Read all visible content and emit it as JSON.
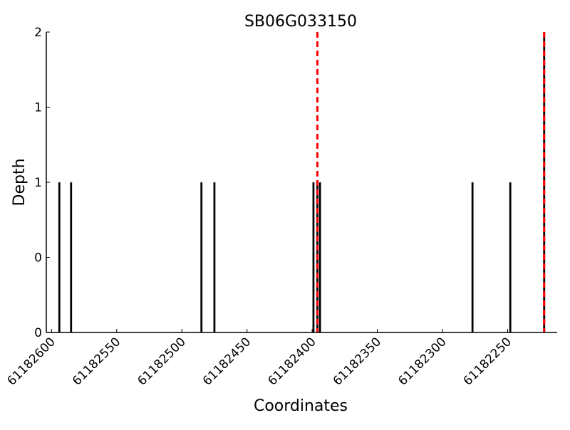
{
  "chart_data": {
    "type": "bar",
    "title": "SB06G033150",
    "xlabel": "Coordinates",
    "ylabel": "Depth",
    "xlim": [
      61182604,
      61182212
    ],
    "x_reversed": true,
    "ylim": [
      0,
      2
    ],
    "xticks": [
      61182600,
      61182550,
      61182500,
      61182450,
      61182400,
      61182350,
      61182300,
      61182250
    ],
    "xtick_labels": [
      "61182600",
      "61182550",
      "61182500",
      "61182450",
      "61182400",
      "61182350",
      "61182300",
      "61182250"
    ],
    "yticks": [
      0,
      0.5,
      1,
      1.5,
      2
    ],
    "ytick_labels": [
      "0",
      "0",
      "1",
      "1",
      "2"
    ],
    "grid": false,
    "bars": [
      {
        "x": 61182594,
        "depth": 1
      },
      {
        "x": 61182585,
        "depth": 1
      },
      {
        "x": 61182485,
        "depth": 1
      },
      {
        "x": 61182475,
        "depth": 1
      },
      {
        "x": 61182399,
        "depth": 1
      },
      {
        "x": 61182396,
        "depth": 1
      },
      {
        "x": 61182394,
        "depth": 1
      },
      {
        "x": 61182277,
        "depth": 1
      },
      {
        "x": 61182248,
        "depth": 1
      },
      {
        "x": 61182222,
        "depth": 2
      }
    ],
    "markers": [
      {
        "x": 61182396,
        "style": "dashed",
        "color": "#ff0000"
      },
      {
        "x": 61182222,
        "style": "dashed",
        "color": "#ff0000"
      }
    ],
    "bar_color": "#000000"
  }
}
